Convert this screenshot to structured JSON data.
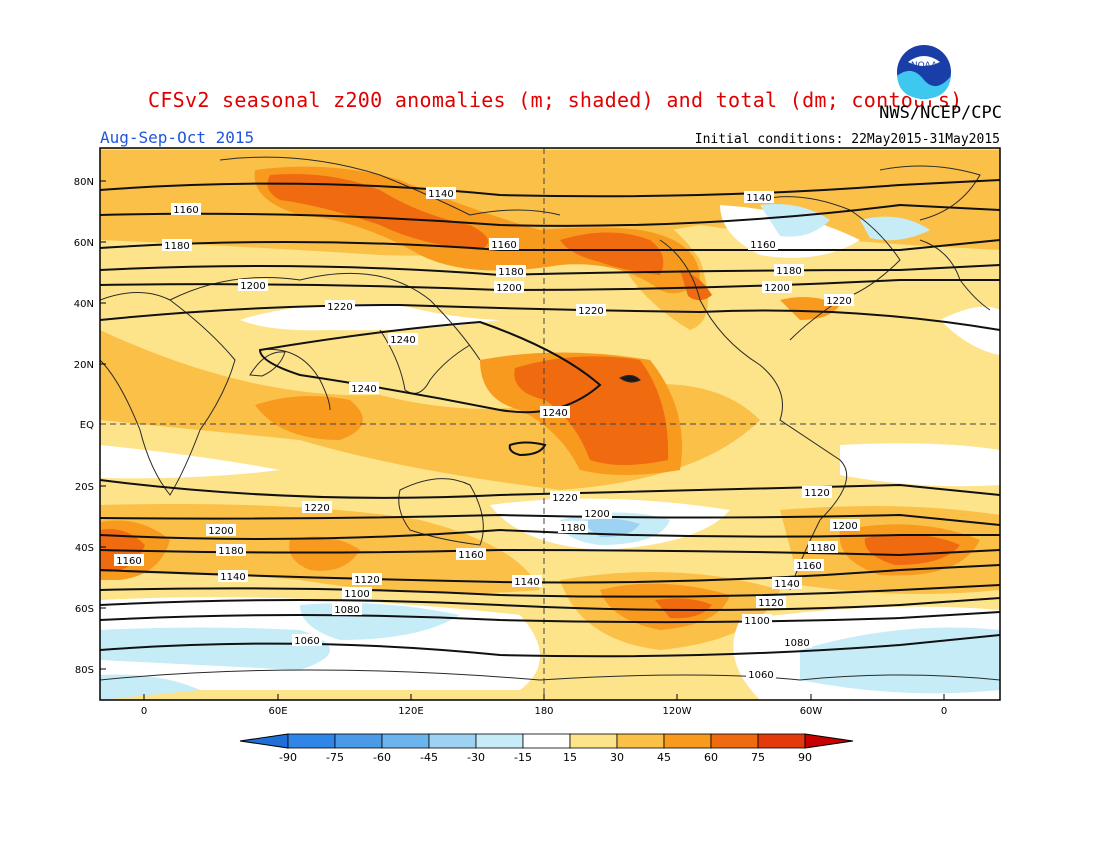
{
  "title": "CFSv2 seasonal z200 anomalies (m; shaded) and total (dm; contours)",
  "agency": "NWS/NCEP/CPC",
  "season": "Aug-Sep-Oct 2015",
  "initial_conditions": "Initial conditions: 22May2015-31May2015",
  "logo_text": "NOAA",
  "map": {
    "lat_labels": [
      "80N",
      "60N",
      "40N",
      "20N",
      "EQ",
      "20S",
      "40S",
      "60S",
      "80S"
    ],
    "lon_labels": [
      "0",
      "60E",
      "120E",
      "180",
      "120W",
      "60W",
      "0"
    ],
    "contour_labels": [
      "1140",
      "1160",
      "1180",
      "1200",
      "1220",
      "1240",
      "1240",
      "1240",
      "1220",
      "1200",
      "1180",
      "1160",
      "1140",
      "1120",
      "1100",
      "1080",
      "1060",
      "1140",
      "1160",
      "1180",
      "1200",
      "1220",
      "1160",
      "1180",
      "1200",
      "1220",
      "1200",
      "1180",
      "1160",
      "1140",
      "1120",
      "1100",
      "1080",
      "1060",
      "1220",
      "1200",
      "1180",
      "1160",
      "1140",
      "1120"
    ]
  },
  "colorbar": {
    "levels": [
      "-90",
      "-75",
      "-60",
      "-45",
      "-30",
      "-15",
      "15",
      "30",
      "45",
      "60",
      "75",
      "90"
    ],
    "colors": [
      "#1f6fd9",
      "#2f86e6",
      "#4a9ae8",
      "#6cb4ee",
      "#9ed2f3",
      "#c6ecf7",
      "#ffffff",
      "#fde38a",
      "#fbc048",
      "#f79a1e",
      "#f06a10",
      "#e23a0a",
      "#c80000"
    ]
  }
}
